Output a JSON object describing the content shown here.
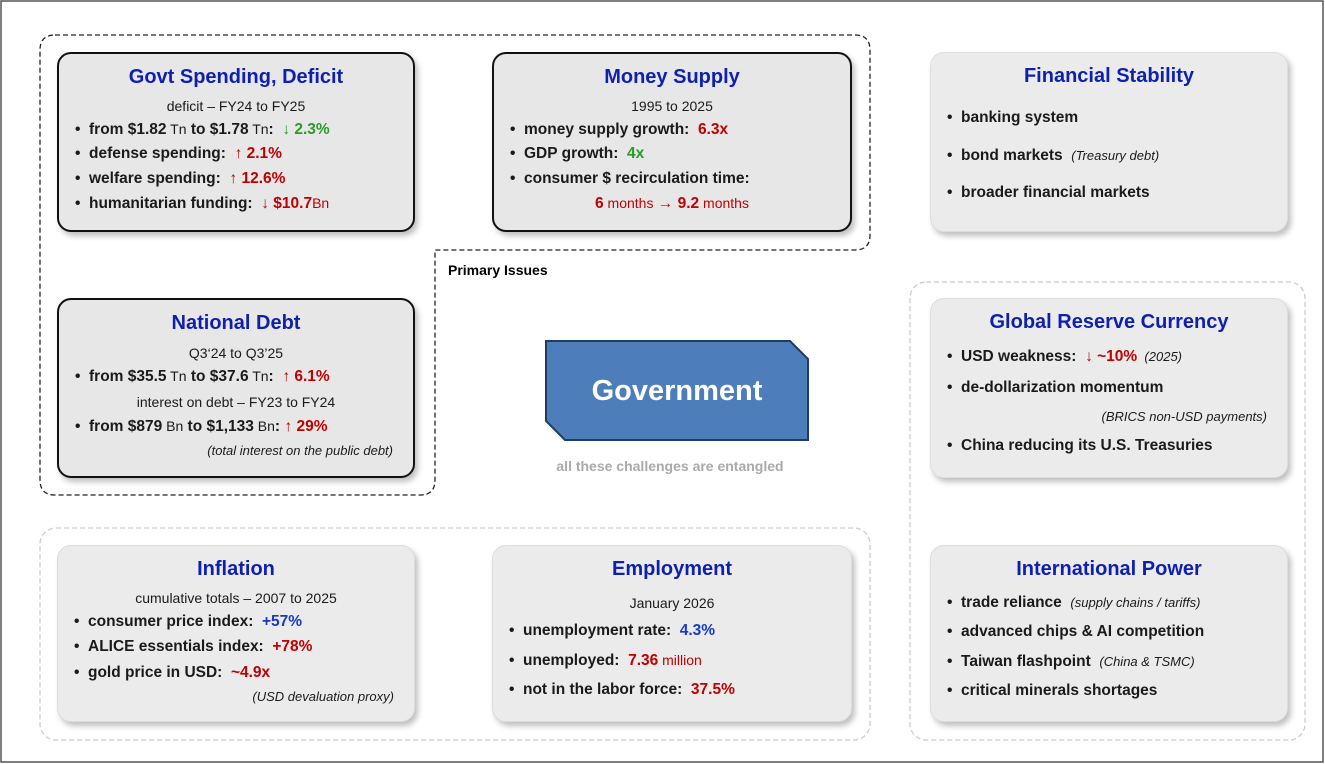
{
  "primary_issues": "Primary Issues",
  "center": {
    "label": "Government",
    "caption": "all these challenges are entangled"
  },
  "boxes": [
    {
      "title": "Govt Spending, Deficit",
      "lines": [
        {
          "subtitle": "deficit – FY24 to FY25"
        },
        {
          "segments": [
            {
              "text": "from $1.82"
            },
            {
              "text": " Tn",
              "tone": "unit"
            },
            {
              "text": " to $1.78"
            },
            {
              "text": " Tn",
              "tone": "unit"
            },
            {
              "text": ":  "
            },
            {
              "text": "↓ 2.3%",
              "tone": "green"
            }
          ]
        },
        {
          "segments": [
            {
              "text": "defense spending:  "
            },
            {
              "text": "↑ 2.1%",
              "tone": "red"
            }
          ]
        },
        {
          "segments": [
            {
              "text": "welfare spending:  "
            },
            {
              "text": "↑ 12.6%",
              "tone": "red"
            }
          ]
        },
        {
          "segments": [
            {
              "text": "humanitarian funding:  "
            },
            {
              "text": "↓ $10.7",
              "tone": "red"
            },
            {
              "text": "Bn",
              "tone": "redunit"
            }
          ]
        }
      ]
    },
    {
      "title": "Money Supply",
      "lines": [
        {
          "subtitle": "1995 to 2025"
        },
        {
          "segments": [
            {
              "text": "money supply growth:  "
            },
            {
              "text": "6.3x",
              "tone": "red"
            }
          ]
        },
        {
          "segments": [
            {
              "text": "GDP growth:  "
            },
            {
              "text": "4x",
              "tone": "green"
            }
          ]
        },
        {
          "segments": [
            {
              "text": "consumer $ recirculation time:"
            }
          ]
        },
        {
          "detail": [
            {
              "text": "6",
              "tone": "red"
            },
            {
              "text": " months",
              "tone": "redunit"
            },
            {
              "text": " → 9.2",
              "tone": "red"
            },
            {
              "text": " months",
              "tone": "redunit"
            }
          ]
        }
      ]
    },
    {
      "title": "Financial Stability",
      "lines": [
        {
          "segments": [
            {
              "text": "banking system"
            }
          ]
        },
        {
          "segments": [
            {
              "text": "bond markets  "
            },
            {
              "text": "(Treasury debt)",
              "tone": "note"
            }
          ]
        },
        {
          "segments": [
            {
              "text": "broader financial markets"
            }
          ]
        }
      ]
    },
    {
      "title": "National Debt",
      "lines": [
        {
          "subtitle": "Q3‘24 to Q3’25"
        },
        {
          "segments": [
            {
              "text": "from $35.5"
            },
            {
              "text": " Tn",
              "tone": "unit"
            },
            {
              "text": " to $37.6"
            },
            {
              "text": " Tn",
              "tone": "unit"
            },
            {
              "text": ":  "
            },
            {
              "text": "↑ 6.1%",
              "tone": "red"
            }
          ]
        },
        {
          "subtitle": "interest on debt – FY23 to FY24"
        },
        {
          "segments": [
            {
              "text": "from $879"
            },
            {
              "text": " Bn",
              "tone": "unit"
            },
            {
              "text": " to $1,133"
            },
            {
              "text": " Bn",
              "tone": "unit"
            },
            {
              "text": ": "
            },
            {
              "text": "↑ 29%",
              "tone": "red"
            }
          ]
        },
        {
          "note": "(total interest on the public debt)"
        }
      ]
    },
    {
      "title": "Global Reserve Currency",
      "lines": [
        {
          "segments": [
            {
              "text": "USD weakness:  "
            },
            {
              "text": "↓ ~10%",
              "tone": "red"
            },
            {
              "text": "  (2025)",
              "tone": "note"
            }
          ]
        },
        {
          "segments": [
            {
              "text": "de-dollarization momentum"
            }
          ]
        },
        {
          "note": "(BRICS non-USD payments)"
        },
        {
          "segments": [
            {
              "text": "China reducing its U.S. Treasuries"
            }
          ]
        }
      ]
    },
    {
      "title": "Inflation",
      "lines": [
        {
          "subtitle": "cumulative totals – 2007 to 2025"
        },
        {
          "segments": [
            {
              "text": "consumer price index:  "
            },
            {
              "text": "+57%",
              "tone": "blue"
            }
          ]
        },
        {
          "segments": [
            {
              "text": "ALICE essentials index:  "
            },
            {
              "text": "+78%",
              "tone": "red"
            }
          ]
        },
        {
          "segments": [
            {
              "text": "gold price in USD:  "
            },
            {
              "text": "~4.9x",
              "tone": "red"
            }
          ]
        },
        {
          "note": "(USD devaluation proxy)"
        }
      ]
    },
    {
      "title": "Employment",
      "lines": [
        {
          "subtitle": "January 2026"
        },
        {
          "segments": [
            {
              "text": "unemployment rate:  "
            },
            {
              "text": "4.3%",
              "tone": "blue"
            }
          ]
        },
        {
          "segments": [
            {
              "text": "unemployed:  "
            },
            {
              "text": "7.36",
              "tone": "red"
            },
            {
              "text": " million",
              "tone": "redunit"
            }
          ]
        },
        {
          "segments": [
            {
              "text": "not in the labor force:  "
            },
            {
              "text": "37.5%",
              "tone": "red"
            }
          ]
        }
      ]
    },
    {
      "title": "International Power",
      "lines": [
        {
          "segments": [
            {
              "text": "trade reliance  "
            },
            {
              "text": "(supply chains / tariffs)",
              "tone": "note"
            }
          ]
        },
        {
          "segments": [
            {
              "text": "advanced chips & AI competition"
            }
          ]
        },
        {
          "segments": [
            {
              "text": "Taiwan flashpoint  "
            },
            {
              "text": "(China & TSMC)",
              "tone": "note"
            }
          ]
        },
        {
          "segments": [
            {
              "text": "critical minerals shortages"
            }
          ]
        }
      ]
    }
  ]
}
